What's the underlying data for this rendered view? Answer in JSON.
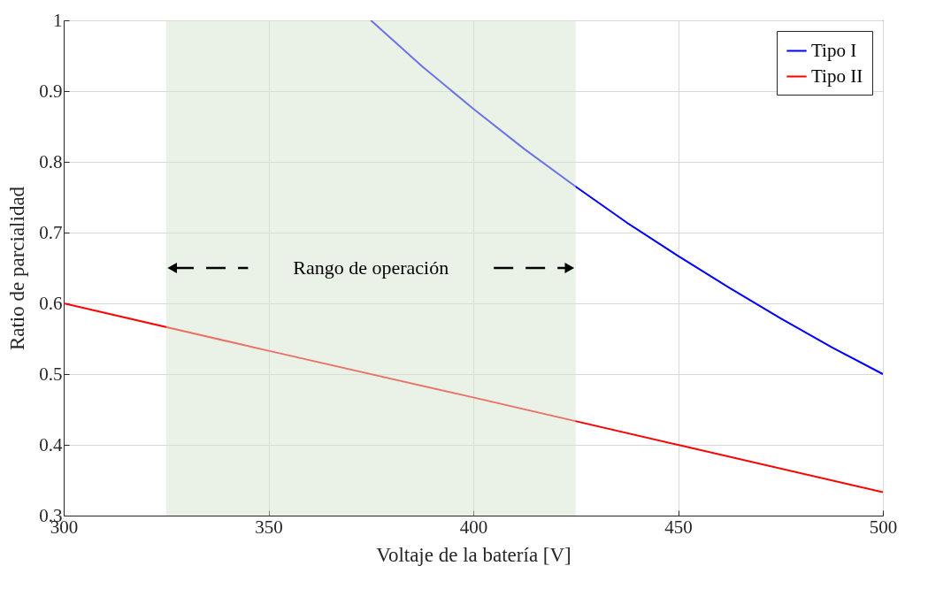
{
  "chart_data": {
    "type": "line",
    "xlabel": "Voltaje de la batería [V]",
    "ylabel": "Ratio de parcialidad",
    "x": [
      375,
      387.5,
      400,
      412.5,
      425,
      437.5,
      450,
      462.5,
      475,
      487.5,
      500
    ],
    "series": [
      {
        "name": "Tipo I",
        "color": "#0000ff",
        "values": [
          1.0,
          0.935,
          0.875,
          0.818,
          0.765,
          0.714,
          0.667,
          0.622,
          0.579,
          0.538,
          0.5
        ]
      },
      {
        "name": "Tipo II",
        "color": "#ff0000",
        "x": [
          300,
          350,
          400,
          450,
          500
        ],
        "values": [
          0.6,
          0.533,
          0.467,
          0.4,
          0.333
        ]
      }
    ],
    "bands": [
      {
        "axis": "x",
        "from": 325,
        "to": 425,
        "label": "Rango de operación",
        "color": "#d5e6d0"
      }
    ],
    "xlim": [
      300,
      500
    ],
    "xticks": [
      300,
      350,
      400,
      450,
      500
    ],
    "ylim": [
      0.3,
      1
    ],
    "yticks": [
      0.3,
      0.4,
      0.5,
      0.6,
      0.7,
      0.8,
      0.9,
      1
    ],
    "grid": true,
    "legend": "top right"
  }
}
